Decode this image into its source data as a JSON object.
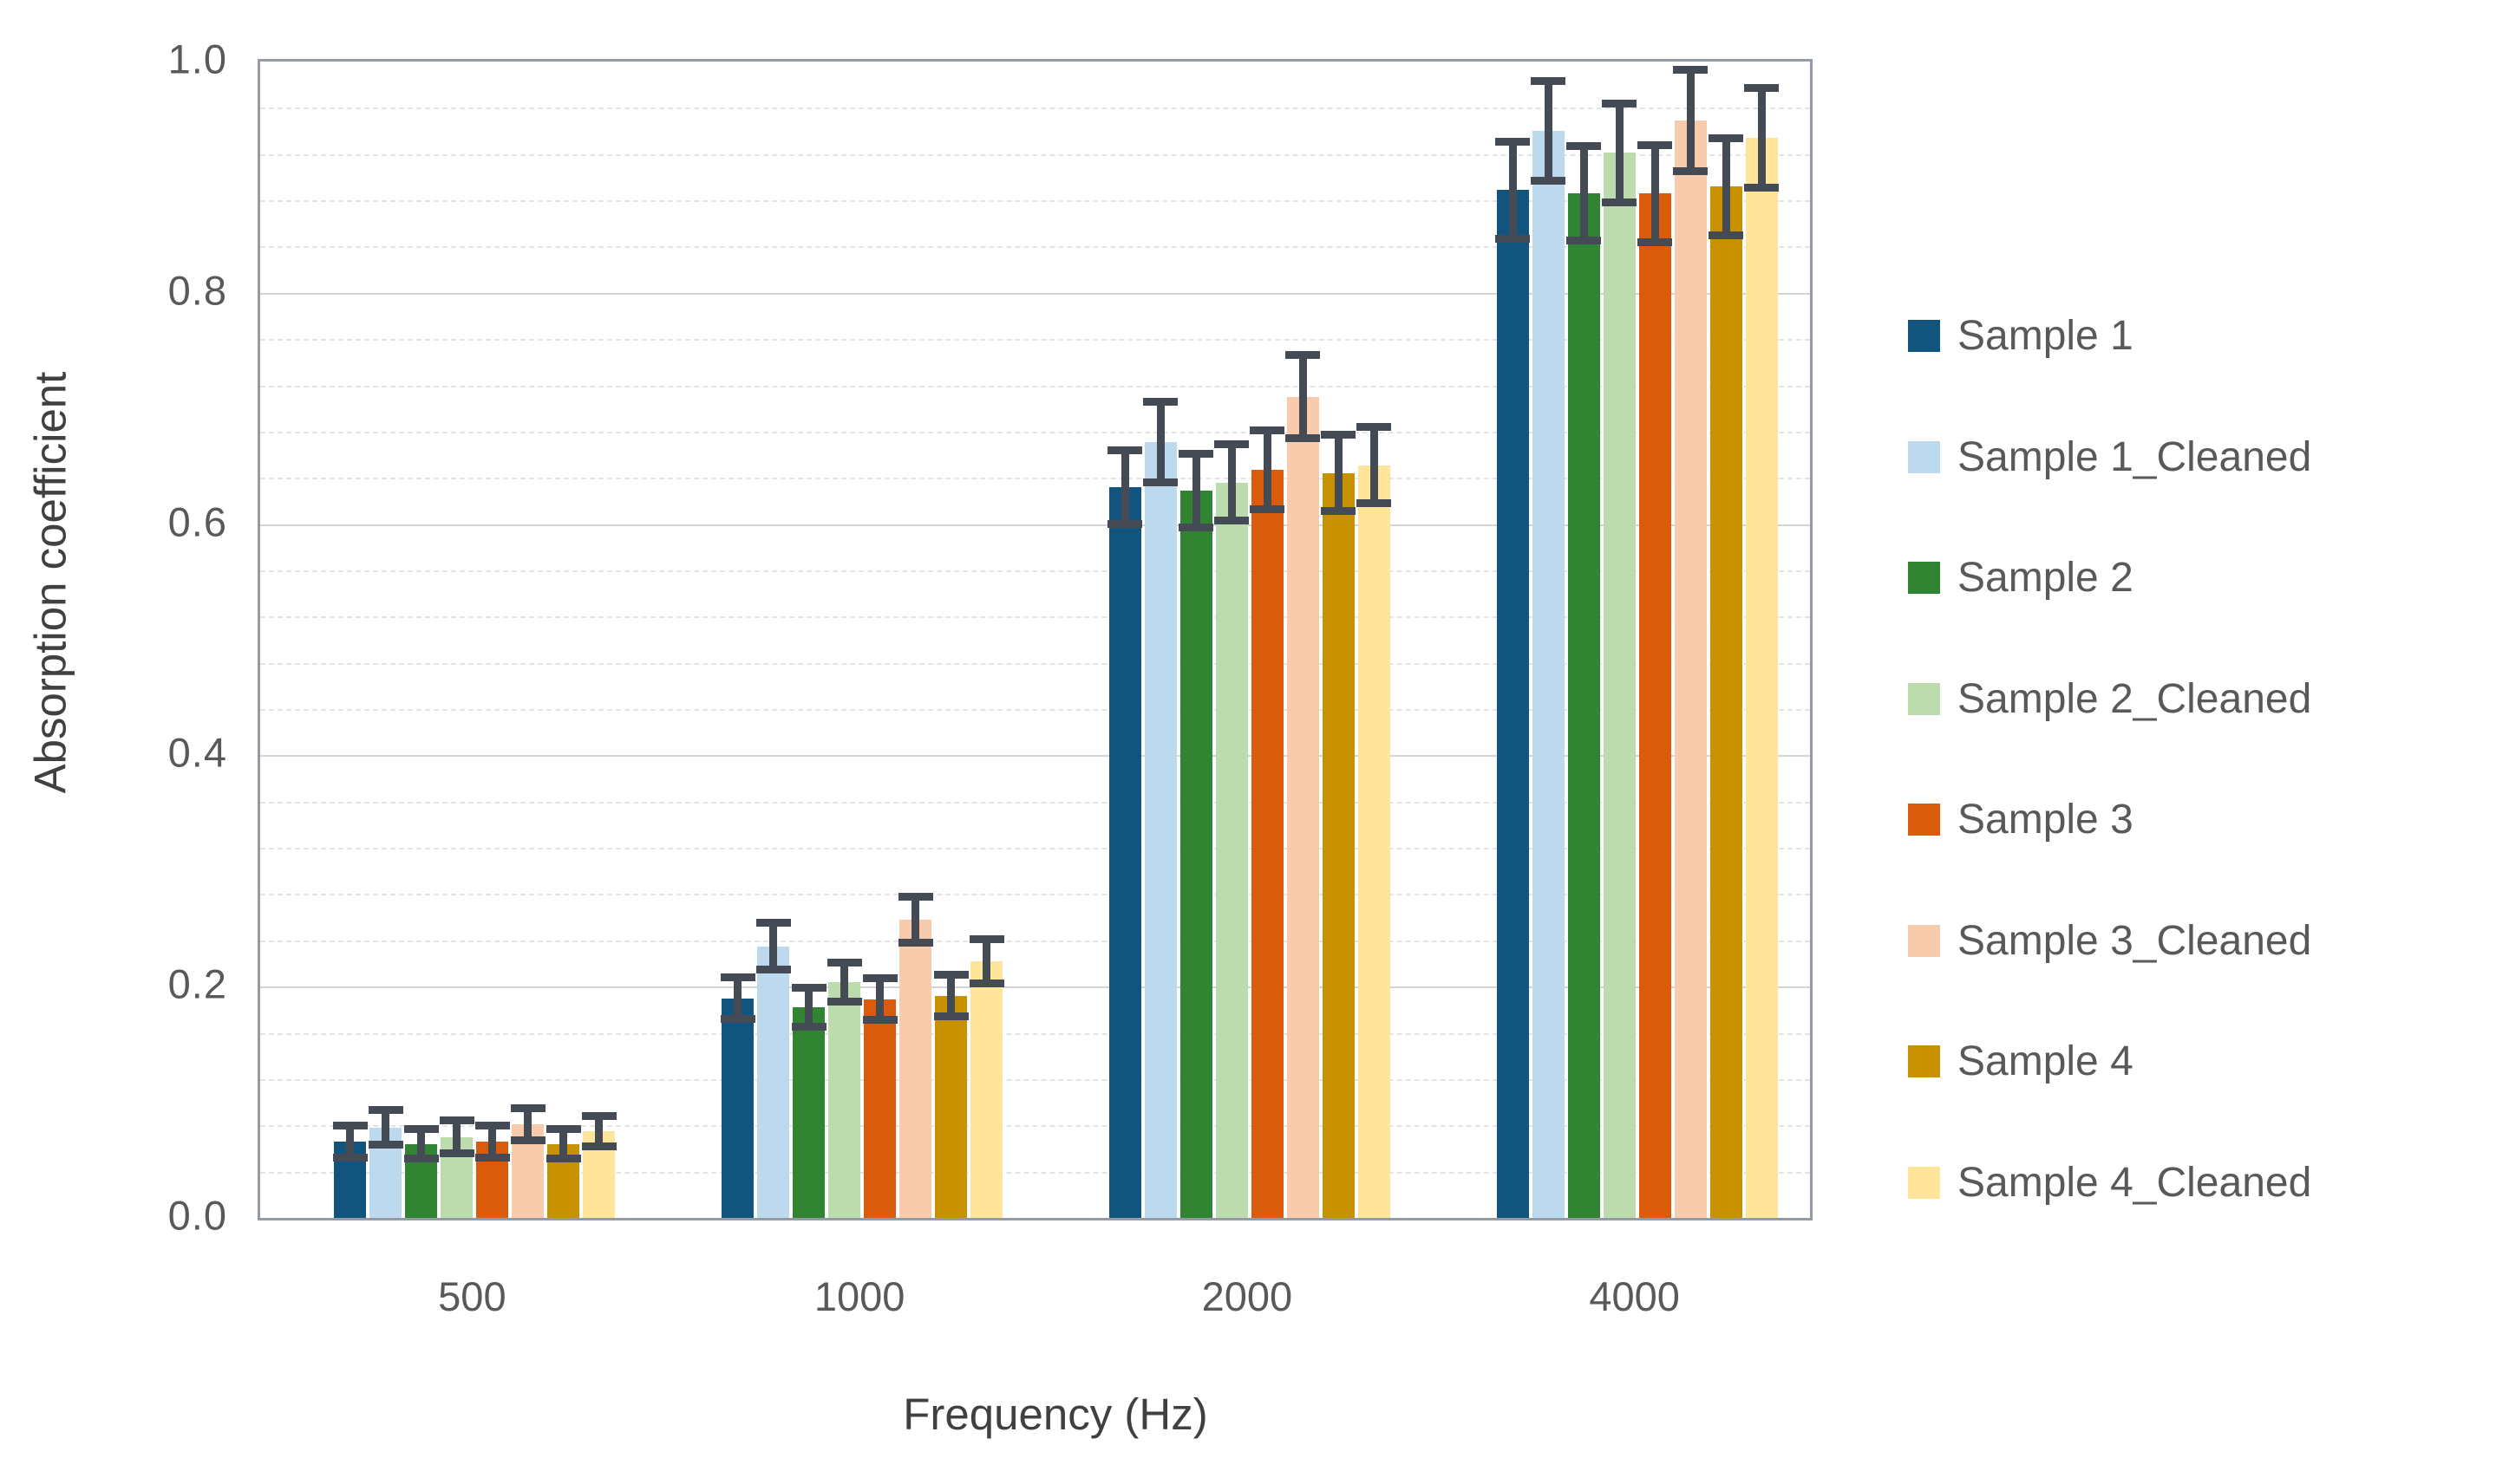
{
  "chart_data": {
    "type": "bar",
    "title": "",
    "xlabel": "Frequency (Hz)",
    "ylabel": "Absorption coefficient",
    "categories": [
      "500",
      "1000",
      "2000",
      "4000"
    ],
    "ylim": [
      0,
      1
    ],
    "ytick_labels": [
      "0.0",
      "0.2",
      "0.4",
      "0.6",
      "0.8",
      "1.0"
    ],
    "ytick_values": [
      0,
      0.2,
      0.4,
      0.6,
      0.8,
      1.0
    ],
    "minor_grid_step": 0.04,
    "major_grid_step": 0.2,
    "grid": true,
    "error_bars": true,
    "legend_position": "right",
    "error_bar_color": "#454B54",
    "series": [
      {
        "name": "Sample 1",
        "color": "#11557F",
        "values": [
          0.066,
          0.19,
          0.632,
          0.889
        ],
        "errors": [
          0.014,
          0.018,
          0.032,
          0.042
        ]
      },
      {
        "name": "Sample 1_Cleaned",
        "color": "#BDD9EE",
        "values": [
          0.078,
          0.235,
          0.671,
          0.94
        ],
        "errors": [
          0.015,
          0.02,
          0.035,
          0.043
        ]
      },
      {
        "name": "Sample 2",
        "color": "#318431",
        "values": [
          0.064,
          0.182,
          0.629,
          0.886
        ],
        "errors": [
          0.013,
          0.017,
          0.032,
          0.041
        ]
      },
      {
        "name": "Sample 2_Cleaned",
        "color": "#BCDCAD",
        "values": [
          0.07,
          0.204,
          0.636,
          0.921
        ],
        "errors": [
          0.014,
          0.017,
          0.033,
          0.043
        ]
      },
      {
        "name": "Sample 3",
        "color": "#DA5B0B",
        "values": [
          0.066,
          0.189,
          0.647,
          0.886
        ],
        "errors": [
          0.014,
          0.018,
          0.034,
          0.042
        ]
      },
      {
        "name": "Sample 3_Cleaned",
        "color": "#F8CBAD",
        "values": [
          0.081,
          0.258,
          0.71,
          0.949
        ],
        "errors": [
          0.014,
          0.02,
          0.036,
          0.044
        ]
      },
      {
        "name": "Sample 4",
        "color": "#C79100",
        "values": [
          0.064,
          0.192,
          0.644,
          0.892
        ],
        "errors": [
          0.013,
          0.018,
          0.033,
          0.042
        ]
      },
      {
        "name": "Sample 4_Cleaned",
        "color": "#FFE599",
        "values": [
          0.075,
          0.222,
          0.651,
          0.934
        ],
        "errors": [
          0.013,
          0.019,
          0.033,
          0.043
        ]
      }
    ]
  }
}
